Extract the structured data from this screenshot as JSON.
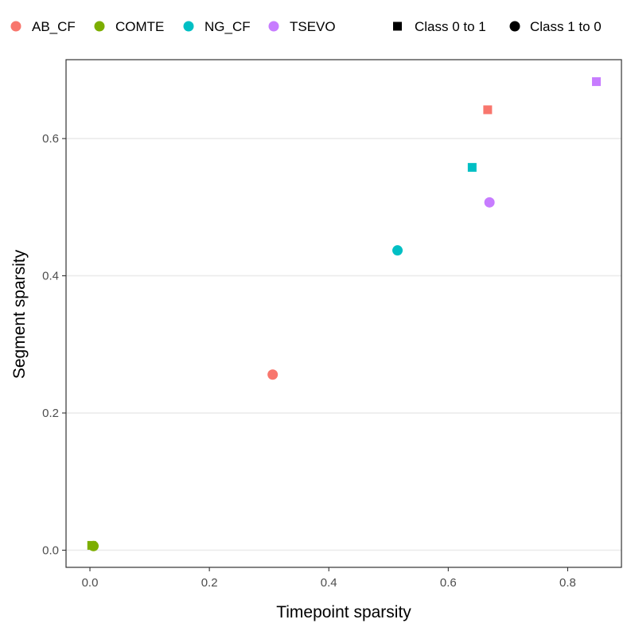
{
  "chart_data": {
    "type": "scatter",
    "xlabel": "Timepoint sparsity",
    "ylabel": "Segment sparsity",
    "xlim": [
      -0.04,
      0.89
    ],
    "ylim": [
      -0.025,
      0.715
    ],
    "x_ticks": [
      0.0,
      0.2,
      0.4,
      0.6,
      0.8
    ],
    "x_tick_labels": [
      "0.0",
      "0.2",
      "0.4",
      "0.6",
      "0.8"
    ],
    "y_ticks": [
      0.0,
      0.2,
      0.4,
      0.6
    ],
    "y_tick_labels": [
      "0.0",
      "0.2",
      "0.4",
      "0.6"
    ],
    "grid": "horizontal major",
    "legend_position": "top",
    "color_legend": [
      {
        "name": "AB_CF",
        "color": "#F8766D"
      },
      {
        "name": "COMTE",
        "color": "#7CAE00"
      },
      {
        "name": "NG_CF",
        "color": "#00BFC4"
      },
      {
        "name": "TSEVO",
        "color": "#C77CFF"
      }
    ],
    "shape_legend": [
      {
        "name": "Class 0 to 1",
        "shape": "square"
      },
      {
        "name": "Class 1 to 0",
        "shape": "circle"
      }
    ],
    "points": [
      {
        "method": "AB_CF",
        "class": "Class 0 to 1",
        "x": 0.666,
        "y": 0.642
      },
      {
        "method": "AB_CF",
        "class": "Class 1 to 0",
        "x": 0.306,
        "y": 0.256
      },
      {
        "method": "COMTE",
        "class": "Class 0 to 1",
        "x": 0.003,
        "y": 0.007
      },
      {
        "method": "COMTE",
        "class": "Class 1 to 0",
        "x": 0.006,
        "y": 0.006
      },
      {
        "method": "NG_CF",
        "class": "Class 0 to 1",
        "x": 0.64,
        "y": 0.558
      },
      {
        "method": "NG_CF",
        "class": "Class 1 to 0",
        "x": 0.515,
        "y": 0.437
      },
      {
        "method": "TSEVO",
        "class": "Class 0 to 1",
        "x": 0.848,
        "y": 0.683
      },
      {
        "method": "TSEVO",
        "class": "Class 1 to 0",
        "x": 0.669,
        "y": 0.507
      }
    ]
  }
}
